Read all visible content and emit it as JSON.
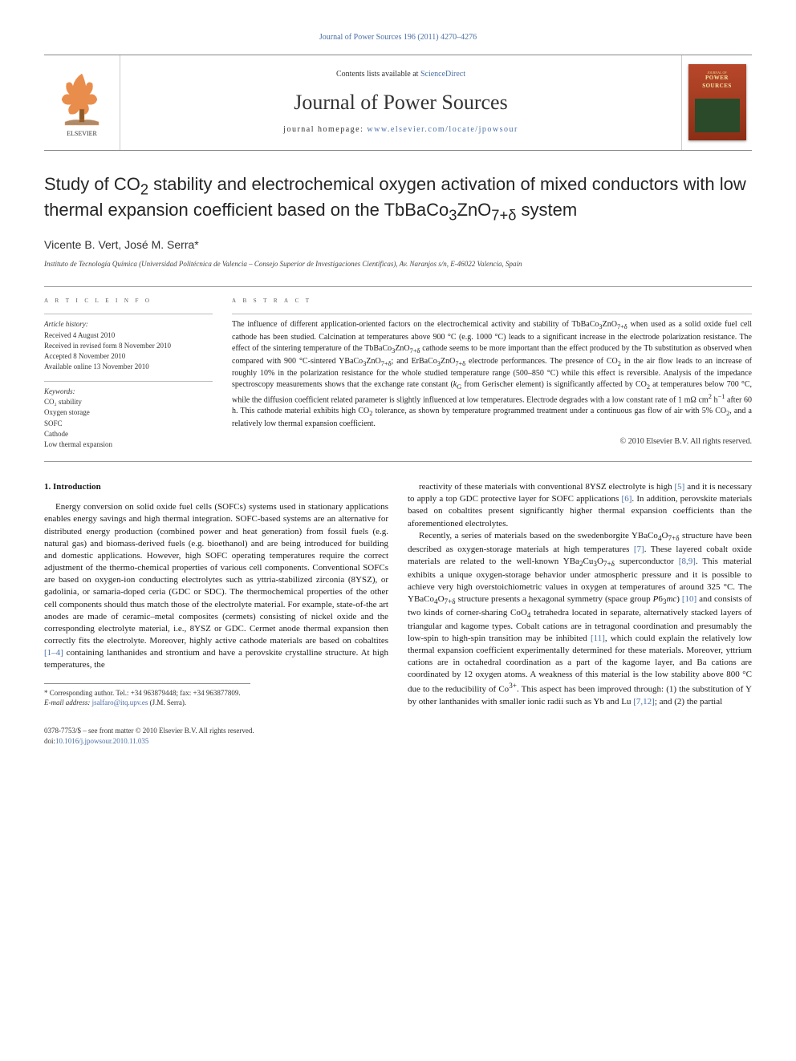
{
  "top_link": {
    "prefix": "Journal of Power Sources 196 (2011) 4270–4276",
    "url_label": ""
  },
  "header": {
    "contents_prefix": "Contents lists available at ",
    "contents_link": "ScienceDirect",
    "journal_title": "Journal of Power Sources",
    "homepage_prefix": "journal homepage: ",
    "homepage_url": "www.elsevier.com/locate/jpowsour",
    "cover_title": "POWER SOURCES",
    "cover_brand": "JOURNAL OF"
  },
  "article": {
    "title_html": "Study of CO<sub>2</sub> stability and electrochemical oxygen activation of mixed conductors with low thermal expansion coefficient based on the TbBaCo<sub>3</sub>ZnO<sub>7+δ</sub> system",
    "authors": "Vicente B. Vert, José M. Serra",
    "author_mark": "*",
    "affiliation": "Instituto de Tecnología Química (Universidad Politécnica de Valencia – Consejo Superior de Investigaciones Científicas), Av. Naranjos s/n, E-46022 Valencia, Spain"
  },
  "info": {
    "heading": "a r t i c l e   i n f o",
    "history_label": "Article history:",
    "history": [
      "Received 4 August 2010",
      "Received in revised form 8 November 2010",
      "Accepted 8 November 2010",
      "Available online 13 November 2010"
    ],
    "keywords_label": "Keywords:",
    "keywords": [
      "CO₂ stability",
      "Oxygen storage",
      "SOFC",
      "Cathode",
      "Low thermal expansion"
    ]
  },
  "abstract": {
    "heading": "a b s t r a c t",
    "text_html": "The influence of different application-oriented factors on the electrochemical activity and stability of TbBaCo<sub>3</sub>ZnO<sub>7+δ</sub> when used as a solid oxide fuel cell cathode has been studied. Calcination at temperatures above 900 °C (e.g. 1000 °C) leads to a significant increase in the electrode polarization resistance. The effect of the sintering temperature of the TbBaCo<sub>3</sub>ZnO<sub>7+δ</sub> cathode seems to be more important than the effect produced by the Tb substitution as observed when compared with 900 °C-sintered YBaCo<sub>3</sub>ZnO<sub>7+δ</sub>; and ErBaCo<sub>3</sub>ZnO<sub>7+δ</sub> electrode performances. The presence of CO<sub>2</sub> in the air flow leads to an increase of roughly 10% in the polarization resistance for the whole studied temperature range (500–850 °C) while this effect is reversible. Analysis of the impedance spectroscopy measurements shows that the exchange rate constant (<i>k</i><sub>G</sub> from Gerischer element) is significantly affected by CO<sub>2</sub> at temperatures below 700 °C, while the diffusion coefficient related parameter is slightly influenced at low temperatures. Electrode degrades with a low constant rate of 1 mΩ cm<sup>2</sup> h<sup>−1</sup> after 60 h. This cathode material exhibits high CO<sub>2</sub> tolerance, as shown by temperature programmed treatment under a continuous gas flow of air with 5% CO<sub>2</sub>, and a relatively low thermal expansion coefficient.",
    "copyright": "© 2010 Elsevier B.V. All rights reserved."
  },
  "body": {
    "section1_heading": "1. Introduction",
    "para1_html": "Energy conversion on solid oxide fuel cells (SOFCs) systems used in stationary applications enables energy savings and high thermal integration. SOFC-based systems are an alternative for distributed energy production (combined power and heat generation) from fossil fuels (e.g. natural gas) and biomass-derived fuels (e.g. bioethanol) and are being introduced for building and domestic applications. However, high SOFC operating temperatures require the correct adjustment of the thermo-chemical properties of various cell components. Conventional SOFCs are based on oxygen-ion conducting electrolytes such as yttria-stabilized zirconia (8YSZ), or gadolinia, or samaria-doped ceria (GDC or SDC). The thermochemical properties of the other cell components should thus match those of the electrolyte material. For example, state-of-the art anodes are made of ceramic–metal composites (cermets) consisting of nickel oxide and the corresponding electrolyte material, i.e., 8YSZ or GDC. Cermet anode thermal expansion then correctly fits the electrolyte. Moreover, highly active cathode materials are based on cobaltites <a class=\"ref-link\" href=\"#\">[1–4]</a> containing lanthanides and strontium and have a perovskite crystalline structure. At high temperatures, the",
    "para2_html": "reactivity of these materials with conventional 8YSZ electrolyte is high <a class=\"ref-link\" href=\"#\">[5]</a> and it is necessary to apply a top GDC protective layer for SOFC applications <a class=\"ref-link\" href=\"#\">[6]</a>. In addition, perovskite materials based on cobaltites present significantly higher thermal expansion coefficients than the aforementioned electrolytes.",
    "para3_html": "Recently, a series of materials based on the swedenborgite YBaCo<sub>4</sub>O<sub>7+δ</sub> structure have been described as oxygen-storage materials at high temperatures <a class=\"ref-link\" href=\"#\">[7]</a>. These layered cobalt oxide materials are related to the well-known YBa<sub>2</sub>Cu<sub>3</sub>O<sub>7+δ</sub> superconductor <a class=\"ref-link\" href=\"#\">[8,9]</a>. This material exhibits a unique oxygen-storage behavior under atmospheric pressure and it is possible to achieve very high overstoichiometric values in oxygen at temperatures of around 325 °C. The YBaCo<sub>4</sub>O<sub>7+δ</sub> structure presents a hexagonal symmetry (space group <i>P</i>6<sub>3</sub><i>mc</i>) <a class=\"ref-link\" href=\"#\">[10]</a> and consists of two kinds of corner-sharing CoO<sub>4</sub> tetrahedra located in separate, alternatively stacked layers of triangular and kagome types. Cobalt cations are in tetragonal coordination and presumably the low-spin to high-spin transition may be inhibited <a class=\"ref-link\" href=\"#\">[11]</a>, which could explain the relatively low thermal expansion coefficient experimentally determined for these materials. Moreover, yttrium cations are in octahedral coordination as a part of the kagome layer, and Ba cations are coordinated by 12 oxygen atoms. A weakness of this material is the low stability above 800 °C due to the reducibility of Co<sup>3+</sup>. This aspect has been improved through: (1) the substitution of Y by other lanthanides with smaller ionic radii such as Yb and Lu <a class=\"ref-link\" href=\"#\">[7,12]</a>; and (2) the partial"
  },
  "footnote": {
    "corr": "* Corresponding author. Tel.: +34 963879448; fax: +34 963877809.",
    "email_label": "E-mail address: ",
    "email": "jsalfaro@itq.upv.es",
    "email_suffix": " (J.M. Serra)."
  },
  "bottom": {
    "line1": "0378-7753/$ – see front matter © 2010 Elsevier B.V. All rights reserved.",
    "doi": "doi:10.1016/j.jpowsour.2010.11.035"
  },
  "colors": {
    "link": "#4a6fa5",
    "text": "#1a1a1a",
    "rule": "#888888",
    "cover_bg": "#a03a1f"
  }
}
